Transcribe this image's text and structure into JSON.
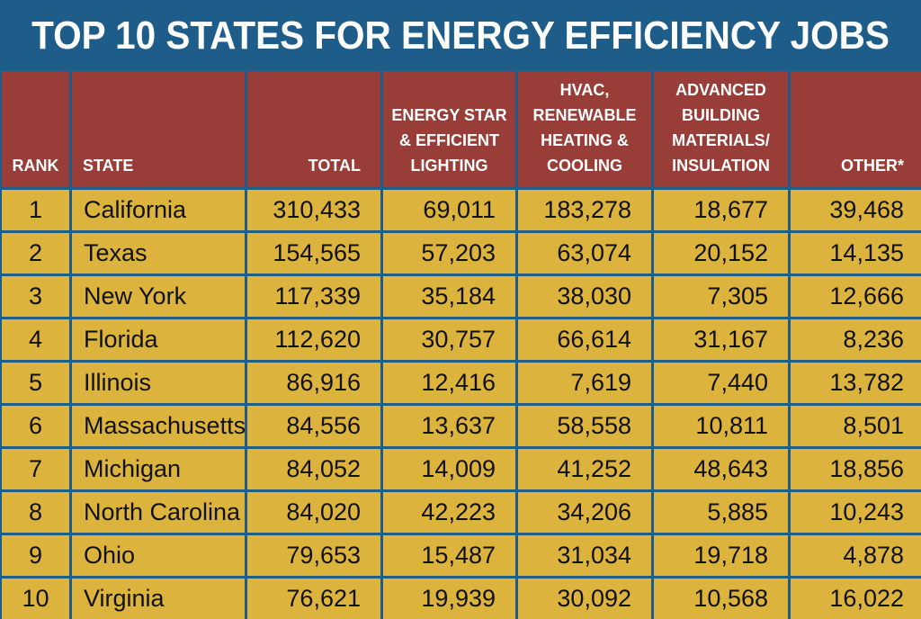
{
  "title": "TOP 10 STATES FOR ENERGY EFFICIENCY JOBS",
  "colors": {
    "background": "#1e5d8a",
    "header": "#983d37",
    "cell": "#dcb33c",
    "title_text": "#ffffff"
  },
  "chart_data": {
    "type": "table",
    "title": "TOP 10 STATES FOR ENERGY EFFICIENCY JOBS",
    "columns": [
      "RANK",
      "STATE",
      "TOTAL",
      "ENERGY STAR\n& EFFICIENT\nLIGHTING",
      "HVAC,\nRENEWABLE\nHEATING &\nCOOLING",
      "ADVANCED\nBUILDING\nMATERIALS/\nINSULATION",
      "OTHER*"
    ],
    "rows": [
      [
        "1",
        "California",
        "310,433",
        "69,011",
        "183,278",
        "18,677",
        "39,468"
      ],
      [
        "2",
        "Texas",
        "154,565",
        "57,203",
        "63,074",
        "20,152",
        "14,135"
      ],
      [
        "3",
        "New York",
        "117,339",
        "35,184",
        "38,030",
        "7,305",
        "12,666"
      ],
      [
        "4",
        "Florida",
        "112,620",
        "30,757",
        "66,614",
        "31,167",
        "8,236"
      ],
      [
        "5",
        "Illinois",
        "86,916",
        "12,416",
        "7,619",
        "7,440",
        "13,782"
      ],
      [
        "6",
        "Massachusetts",
        "84,556",
        "13,637",
        "58,558",
        "10,811",
        "8,501"
      ],
      [
        "7",
        "Michigan",
        "84,052",
        "14,009",
        "41,252",
        "48,643",
        "18,856"
      ],
      [
        "8",
        "North Carolina",
        "84,020",
        "42,223",
        "34,206",
        "5,885",
        "10,243"
      ],
      [
        "9",
        "Ohio",
        "79,653",
        "15,487",
        "31,034",
        "19,718",
        "4,878"
      ],
      [
        "10",
        "Virginia",
        "76,621",
        "19,939",
        "30,092",
        "10,568",
        "16,022"
      ]
    ]
  }
}
